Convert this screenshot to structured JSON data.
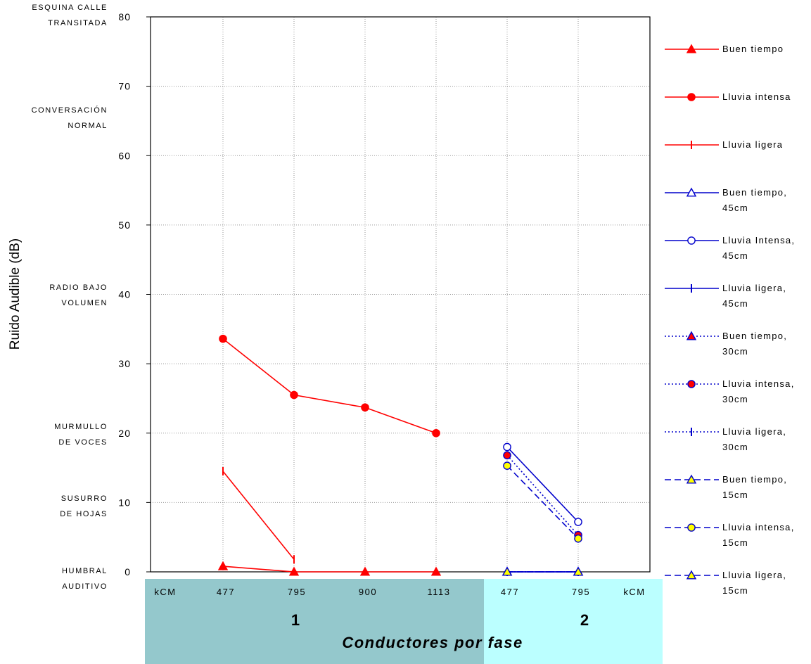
{
  "chart_data": {
    "type": "line",
    "title": "",
    "ylabel": "Ruido Audible (dB)",
    "xlabel": "Conductores por fase",
    "ylim": [
      0,
      80
    ],
    "yticks": [
      0,
      10,
      20,
      30,
      40,
      50,
      60,
      70,
      80
    ],
    "grid": true,
    "legend_position": "right",
    "x_positions": [
      "477",
      "795",
      "900",
      "1113",
      "477",
      "795"
    ],
    "x_unit_label": "kCM",
    "groups": [
      {
        "label": "1",
        "color": "#94c8cc"
      },
      {
        "label": "2",
        "color": "#bbffff"
      }
    ],
    "reference_levels": [
      {
        "lines": [
          "ESQUINA CALLE",
          "TRANSITADA"
        ]
      },
      {
        "lines": [
          "CONVERSACIÓN",
          "NORMAL"
        ]
      },
      {
        "lines": [
          "RADIO BAJO",
          "VOLUMEN"
        ]
      },
      {
        "lines": [
          "MURMULLO",
          "DE VOCES"
        ]
      },
      {
        "lines": [
          "SUSURRO",
          "DE HOJAS"
        ]
      },
      {
        "lines": [
          "HUMBRAL",
          "AUDITIVO"
        ]
      }
    ],
    "series": [
      {
        "name": "Buen tiempo",
        "color": "#ff0000",
        "marker": "triangle",
        "fill": "#ff0000",
        "dash": "solid",
        "x": [
          0,
          1,
          2,
          3
        ],
        "values": [
          0.8,
          0,
          0,
          0
        ]
      },
      {
        "name": "Lluvia intensa",
        "color": "#ff0000",
        "marker": "circle",
        "fill": "#ff0000",
        "dash": "solid",
        "x": [
          0,
          1,
          2,
          3
        ],
        "values": [
          33.6,
          25.5,
          23.7,
          20.0
        ]
      },
      {
        "name": "Lluvia ligera",
        "color": "#ff0000",
        "marker": "tick",
        "fill": "#ff0000",
        "dash": "solid",
        "x": [
          0,
          1
        ],
        "values": [
          14.5,
          1.8
        ]
      },
      {
        "name": "Buen tiempo, 45cm",
        "color": "#0000cc",
        "marker": "triangle",
        "fill": "#ffffff",
        "dash": "solid",
        "x": [
          4,
          5
        ],
        "values": [
          0,
          0
        ]
      },
      {
        "name": "Lluvia Intensa, 45cm",
        "color": "#0000cc",
        "marker": "circle",
        "fill": "#ffffff",
        "dash": "solid",
        "x": [
          4,
          5
        ],
        "values": [
          18.0,
          7.2
        ]
      },
      {
        "name": "Lluvia ligera, 45cm",
        "color": "#0000cc",
        "marker": "tick",
        "fill": "#0000cc",
        "dash": "solid",
        "x": [
          4,
          5
        ],
        "values": [
          0,
          0
        ]
      },
      {
        "name": "Buen tiempo, 30cm",
        "color": "#0000cc",
        "marker": "triangle",
        "fill": "#ff0000",
        "dash": "dotted",
        "x": [
          4,
          5
        ],
        "values": [
          0,
          0
        ]
      },
      {
        "name": "Lluvia intensa, 30cm",
        "color": "#0000cc",
        "marker": "circle",
        "fill": "#ff0000",
        "dash": "dotted",
        "x": [
          4,
          5
        ],
        "values": [
          16.8,
          5.3
        ]
      },
      {
        "name": "Lluvia ligera, 30cm",
        "color": "#0000cc",
        "marker": "tick",
        "fill": "#0000cc",
        "dash": "dotted",
        "x": [
          4,
          5
        ],
        "values": [
          0,
          0
        ]
      },
      {
        "name": "Buen tiempo, 15cm",
        "color": "#0000cc",
        "marker": "triangle",
        "fill": "#ffff00",
        "dash": "dashed",
        "x": [
          4,
          5
        ],
        "values": [
          0,
          0
        ]
      },
      {
        "name": "Lluvia intensa, 15cm",
        "color": "#0000cc",
        "marker": "circle",
        "fill": "#ffff00",
        "dash": "dashed",
        "x": [
          4,
          5
        ],
        "values": [
          15.3,
          4.8
        ]
      },
      {
        "name": "Lluvia ligera, 15cm",
        "color": "#0000cc",
        "marker": "triangle",
        "fill": "#ffff00",
        "dash": "dashed",
        "x": [
          4,
          5
        ],
        "values": [
          0,
          0
        ]
      }
    ]
  }
}
